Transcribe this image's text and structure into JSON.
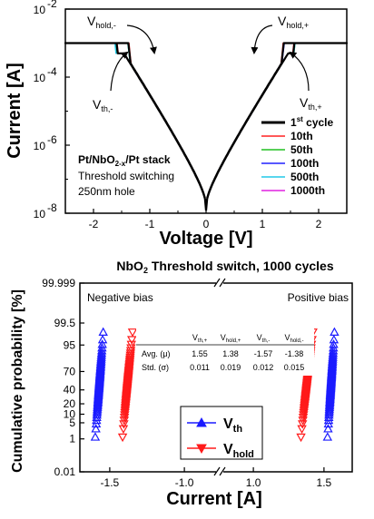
{
  "chart_data": [
    {
      "type": "line",
      "xlabel": "Voltage [V]",
      "ylabel": "Current [A]",
      "xlim": [
        -2.5,
        2.5
      ],
      "ylim": [
        1e-08,
        0.01
      ],
      "y_scale": "log",
      "x_ticks": [
        "-2",
        "-1",
        "0",
        "1",
        "2"
      ],
      "y_ticks": [
        {
          "base": "10",
          "exp": "-8"
        },
        {
          "base": "10",
          "exp": "-6"
        },
        {
          "base": "10",
          "exp": "-4"
        },
        {
          "base": "10",
          "exp": "-2"
        }
      ],
      "annotations": {
        "sample_lines": [
          "Pt/NbO",
          "2-x",
          "/Pt stack",
          "Threshold switching",
          "250nm hole"
        ],
        "v_hold_neg": {
          "main": "V",
          "sub": "hold,-"
        },
        "v_hold_pos": {
          "main": "V",
          "sub": "hold,+"
        },
        "v_th_neg": {
          "main": "V",
          "sub": "th,-"
        },
        "v_th_pos": {
          "main": "V",
          "sub": "th,+"
        }
      },
      "legend_position": "bottom-right",
      "series": [
        {
          "name": "1",
          "name_sup": "st",
          "name_rest": " cycle",
          "color": "#000000",
          "vth_pos": 1.55,
          "vhold_pos": 1.38,
          "vth_neg": -1.57,
          "vhold_neg": -1.38
        },
        {
          "name": "10th",
          "color": "#ff2020",
          "vth_pos": 1.54,
          "vhold_pos": 1.37,
          "vth_neg": -1.56,
          "vhold_neg": -1.37
        },
        {
          "name": "50th",
          "color": "#20c020",
          "vth_pos": 1.56,
          "vhold_pos": 1.38,
          "vth_neg": -1.58,
          "vhold_neg": -1.39
        },
        {
          "name": "100th",
          "color": "#2020ff",
          "vth_pos": 1.55,
          "vhold_pos": 1.39,
          "vth_neg": -1.57,
          "vhold_neg": -1.38
        },
        {
          "name": "500th",
          "color": "#20c8e8",
          "vth_pos": 1.56,
          "vhold_pos": 1.38,
          "vth_neg": -1.6,
          "vhold_neg": -1.39
        },
        {
          "name": "1000th",
          "color": "#e020e0",
          "vth_pos": 1.55,
          "vhold_pos": 1.38,
          "vth_neg": -1.57,
          "vhold_neg": -1.38
        }
      ],
      "compliance_current": 0.001
    },
    {
      "type": "scatter",
      "title": {
        "pre": "NbO",
        "sub": "2",
        "post": " Threshold switch, 1000 cycles"
      },
      "xlabel": "Current [A]",
      "ylabel": "Cumulative probability [%]",
      "y_scale": "probability",
      "x_ticks": [
        "-1.5",
        "-1.0",
        "1.0",
        "1.5"
      ],
      "y_ticks": [
        "0.01",
        "1",
        "5",
        "10",
        "20",
        "40",
        "70",
        "95",
        "99.5",
        "99.999"
      ],
      "labels": {
        "negative": "Negative bias",
        "positive": "Positive bias"
      },
      "legend": [
        {
          "main": "V",
          "sub": "th",
          "color": "#1a1aff",
          "marker": "up-triangle"
        },
        {
          "main": "V",
          "sub": "hold",
          "color": "#ff1a1a",
          "marker": "down-triangle"
        }
      ],
      "table": {
        "columns": [
          {
            "main": "V",
            "sub": "th,+"
          },
          {
            "main": "V",
            "sub": "hold,+"
          },
          {
            "main": "V",
            "sub": "th,-"
          },
          {
            "main": "V",
            "sub": "hold,-"
          }
        ],
        "rows": [
          {
            "label": "Avg. (μ)",
            "values": [
              "1.55",
              "1.38",
              "-1.57",
              "-1.38"
            ]
          },
          {
            "label": "Std. (σ)",
            "values": [
              "0.011",
              "0.019",
              "0.012",
              "0.015"
            ]
          }
        ]
      },
      "distributions": [
        {
          "name": "Vth,-",
          "mean": -1.57,
          "std": 0.012,
          "color": "#1a1aff"
        },
        {
          "name": "Vhold,-",
          "mean": -1.38,
          "std": 0.015,
          "color": "#ff1a1a"
        },
        {
          "name": "Vhold,+",
          "mean": 1.38,
          "std": 0.019,
          "color": "#ff1a1a"
        },
        {
          "name": "Vth,+",
          "mean": 1.55,
          "std": 0.011,
          "color": "#1a1aff"
        }
      ]
    }
  ]
}
